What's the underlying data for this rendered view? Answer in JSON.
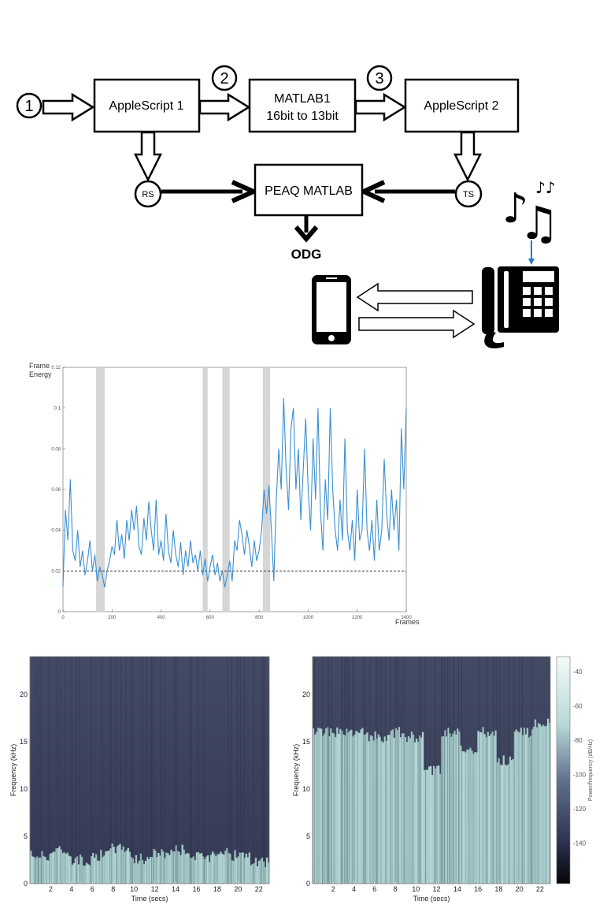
{
  "diagram": {
    "step_labels": [
      "1",
      "2",
      "3"
    ],
    "blocks": {
      "applescript1": "AppleScript 1",
      "matlab1_line1": "MATLAB1",
      "matlab1_line2": "16bit to 13bit",
      "applescript2": "AppleScript 2",
      "peaq": "PEAQ MATLAB"
    },
    "nodes": {
      "rs": "RS",
      "ts": "TS"
    },
    "output": "ODG",
    "icons": [
      "music-notes-icon",
      "phone-handset-icon",
      "smartphone-icon"
    ],
    "arrow_color": "#1f7ec6"
  },
  "chart_data": [
    {
      "type": "line",
      "ylabel_line1": "Frame",
      "ylabel_line2": "Energy",
      "xlabel": "Frames",
      "xlim": [
        0,
        1400
      ],
      "ylim": [
        0,
        0.12
      ],
      "x_ticks": [
        "0",
        "200",
        "400",
        "600",
        "800",
        "1000",
        "1200",
        "1400"
      ],
      "y_ticks": [
        "0",
        "0.02",
        "0.04",
        "0.06",
        "0.08",
        "0.1",
        "0.12"
      ],
      "threshold": 0.02,
      "shaded_spans": [
        [
          135,
          170
        ],
        [
          570,
          590
        ],
        [
          650,
          680
        ],
        [
          815,
          845
        ]
      ],
      "series_color": "#3a8fd1",
      "series": [
        {
          "x": [
            0,
            10,
            20,
            30,
            40,
            50,
            60,
            70,
            80,
            90,
            100,
            110,
            120,
            130,
            140,
            150,
            160,
            170,
            180,
            190,
            200,
            210,
            220,
            230,
            240,
            250,
            260,
            270,
            280,
            290,
            300,
            310,
            320,
            330,
            340,
            350,
            360,
            370,
            380,
            390,
            400,
            410,
            420,
            430,
            440,
            450,
            460,
            470,
            480,
            490,
            500,
            510,
            520,
            530,
            540,
            550,
            560,
            570,
            580,
            590,
            600,
            610,
            620,
            630,
            640,
            650,
            660,
            670,
            680,
            690,
            700,
            710,
            720,
            730,
            740,
            750,
            760,
            770,
            780,
            790,
            800,
            810,
            820,
            830,
            840,
            850,
            860,
            870,
            880,
            890,
            900,
            910,
            920,
            930,
            940,
            950,
            960,
            970,
            980,
            990,
            1000,
            1010,
            1020,
            1030,
            1040,
            1050,
            1060,
            1070,
            1080,
            1090,
            1100,
            1110,
            1120,
            1130,
            1140,
            1150,
            1160,
            1170,
            1180,
            1190,
            1200,
            1210,
            1220,
            1230,
            1240,
            1250,
            1260,
            1270,
            1280,
            1290,
            1300,
            1310,
            1320,
            1330,
            1340,
            1350,
            1360,
            1370,
            1380,
            1390,
            1400
          ],
          "values": [
            0.012,
            0.05,
            0.035,
            0.065,
            0.03,
            0.025,
            0.04,
            0.022,
            0.03,
            0.018,
            0.025,
            0.035,
            0.02,
            0.028,
            0.015,
            0.022,
            0.018,
            0.012,
            0.02,
            0.025,
            0.032,
            0.028,
            0.045,
            0.03,
            0.038,
            0.026,
            0.045,
            0.035,
            0.05,
            0.04,
            0.052,
            0.032,
            0.028,
            0.046,
            0.035,
            0.054,
            0.04,
            0.03,
            0.055,
            0.028,
            0.035,
            0.025,
            0.048,
            0.03,
            0.024,
            0.04,
            0.028,
            0.022,
            0.034,
            0.018,
            0.03,
            0.022,
            0.035,
            0.024,
            0.028,
            0.02,
            0.03,
            0.018,
            0.026,
            0.015,
            0.022,
            0.028,
            0.018,
            0.024,
            0.015,
            0.02,
            0.012,
            0.018,
            0.025,
            0.015,
            0.035,
            0.03,
            0.045,
            0.038,
            0.028,
            0.04,
            0.032,
            0.022,
            0.035,
            0.025,
            0.03,
            0.04,
            0.06,
            0.048,
            0.062,
            0.04,
            0.015,
            0.055,
            0.08,
            0.06,
            0.105,
            0.07,
            0.05,
            0.09,
            0.1,
            0.06,
            0.08,
            0.045,
            0.07,
            0.095,
            0.06,
            0.04,
            0.085,
            0.055,
            0.1,
            0.05,
            0.03,
            0.065,
            0.045,
            0.1,
            0.06,
            0.04,
            0.03,
            0.055,
            0.035,
            0.085,
            0.04,
            0.03,
            0.045,
            0.025,
            0.06,
            0.035,
            0.04,
            0.08,
            0.04,
            0.03,
            0.045,
            0.025,
            0.055,
            0.03,
            0.04,
            0.075,
            0.048,
            0.035,
            0.06,
            0.04,
            0.055,
            0.03,
            0.09,
            0.06,
            0.1
          ]
        }
      ]
    },
    {
      "type": "heatmap",
      "xlabel": "Time (secs)",
      "ylabel": "Frequency (kHz)",
      "x_ticks": [
        "2",
        "4",
        "6",
        "8",
        "10",
        "12",
        "14",
        "16",
        "18",
        "20",
        "22"
      ],
      "y_ticks": [
        "0",
        "5",
        "10",
        "15",
        "20"
      ],
      "xlim": [
        0,
        23
      ],
      "ylim": [
        0,
        24
      ],
      "band_top_khz": [
        3,
        3.5,
        2.5,
        3,
        3.8,
        2.6,
        3.2,
        3.6,
        2.8,
        3.4,
        3.0,
        2.2
      ]
    },
    {
      "type": "heatmap",
      "xlabel": "Time (secs)",
      "ylabel": "Frequency (kHz)",
      "x_ticks": [
        "2",
        "4",
        "6",
        "8",
        "10",
        "12",
        "14",
        "16",
        "18",
        "20",
        "22"
      ],
      "y_ticks": [
        "0",
        "5",
        "10",
        "15",
        "20"
      ],
      "xlim": [
        0,
        23
      ],
      "ylim": [
        0,
        24
      ],
      "band_top_khz": [
        16,
        16,
        16,
        15.5,
        16,
        15.5,
        12,
        16,
        14,
        16,
        13,
        16,
        17
      ],
      "colorbar_label": "Power/frequency (dB/Hz)",
      "colorbar_ticks": [
        "-40",
        "-60",
        "-80",
        "-100",
        "-120",
        "-140"
      ]
    }
  ]
}
